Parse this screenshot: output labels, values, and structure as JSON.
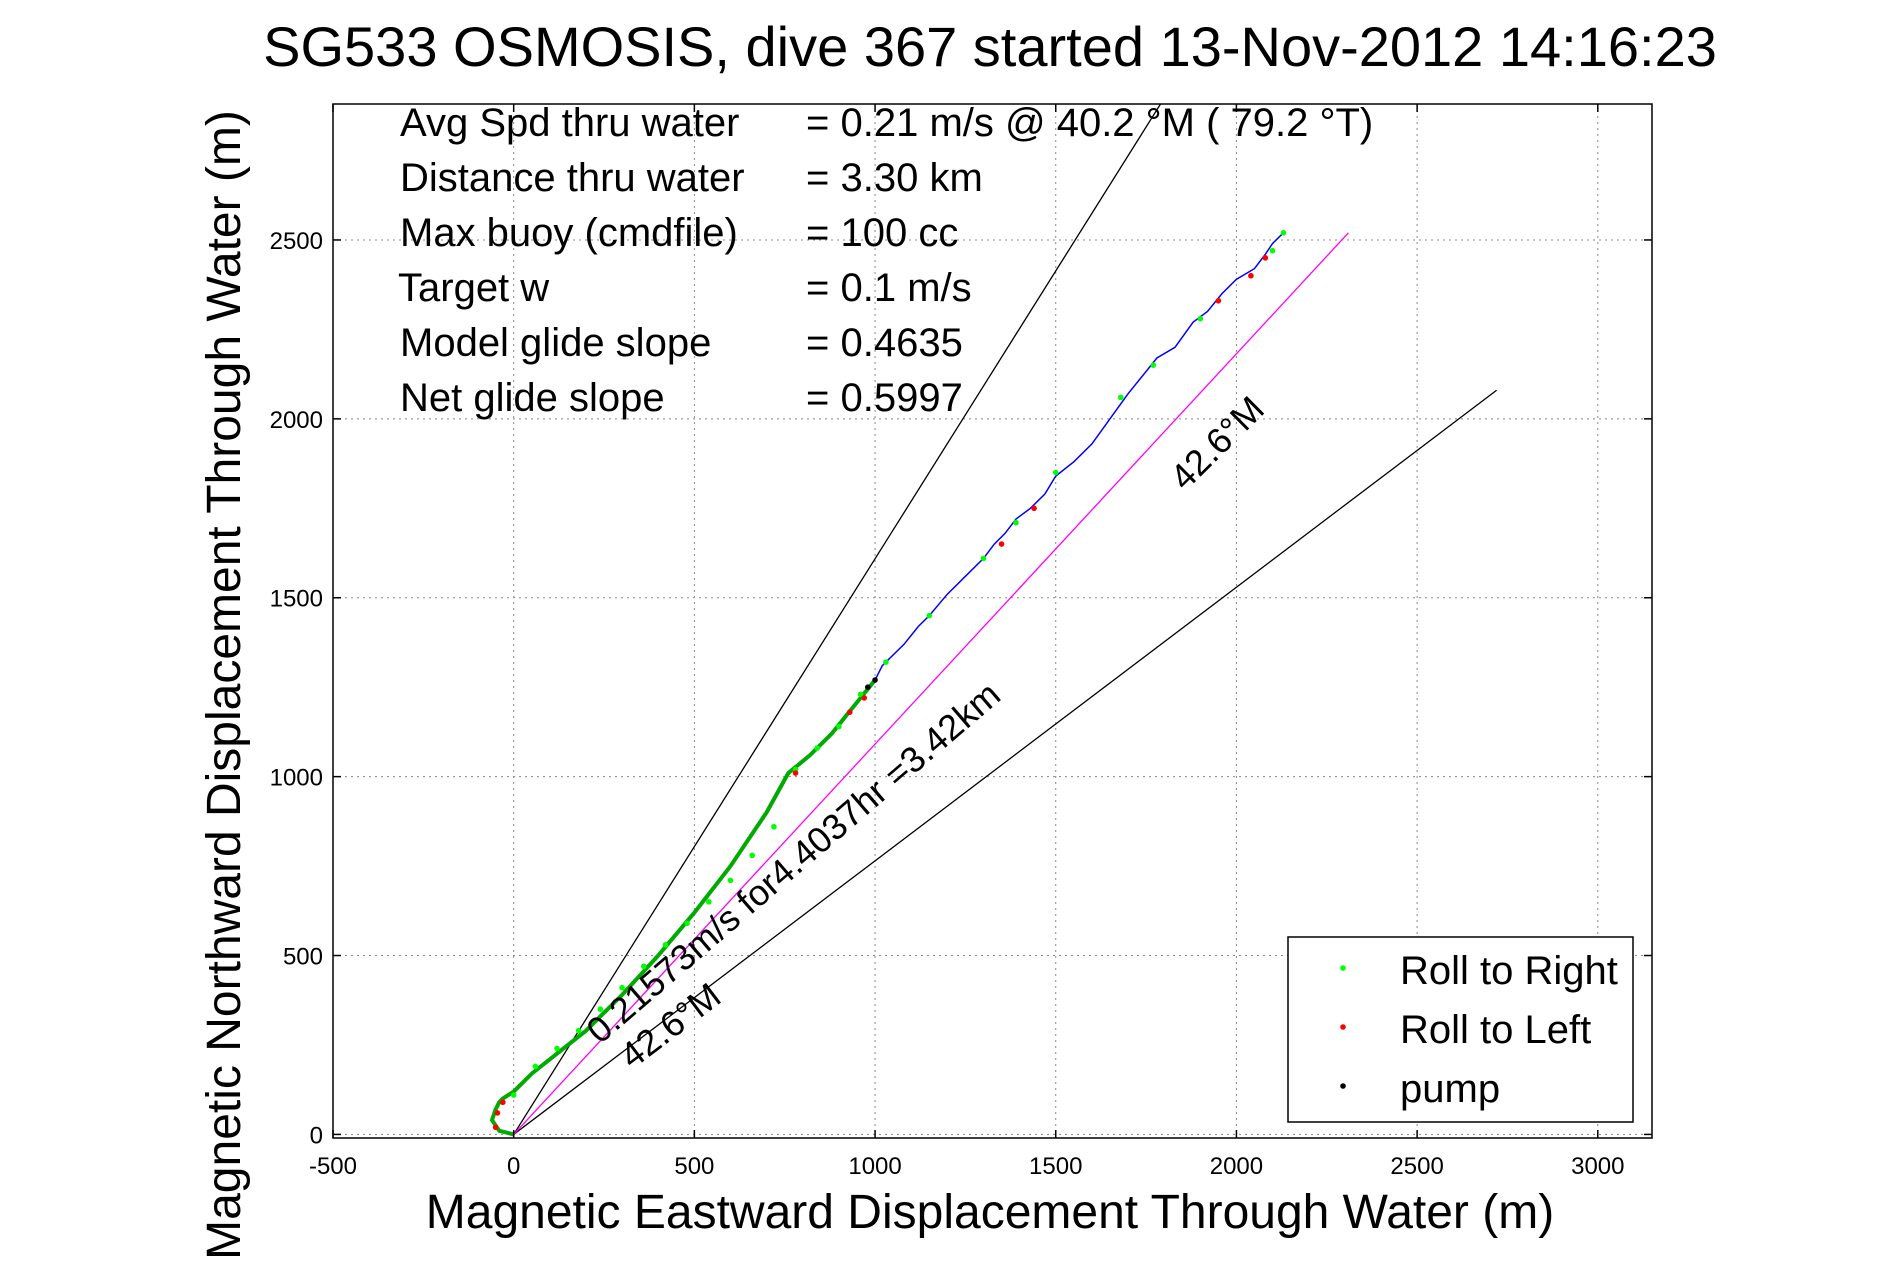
{
  "chart_data": {
    "type": "line",
    "title": "SG533 OSMOSIS, dive 367 started 13-Nov-2012 14:16:23",
    "xlabel": "Magnetic Eastward Displacement Through Water (m)",
    "ylabel": "Magnetic Northward Displacement Through Water (m)",
    "xlim": [
      -500,
      3150
    ],
    "ylim": [
      -10,
      2880
    ],
    "xticks": [
      -500,
      0,
      500,
      1000,
      1500,
      2000,
      2500,
      3000
    ],
    "yticks": [
      0,
      500,
      1000,
      1500,
      2000,
      2500
    ],
    "grid": true,
    "annotations": [
      {
        "label": "Avg Spd thru water",
        "value": "=  0.21 m/s @  40.2 °M ( 79.2 °T)"
      },
      {
        "label": "Distance thru water",
        "value": "=  3.30 km"
      },
      {
        "label": "Max buoy (cmdfile)",
        "value": "= 100 cc"
      },
      {
        "label": "Target w",
        "value": "= 0.1 m/s"
      },
      {
        "label": "Model glide slope",
        "value": "= 0.4635"
      },
      {
        "label": "Net glide slope",
        "value": "= 0.5997"
      }
    ],
    "line_annotations": {
      "course_text": "0.21573m/s for4.4037hr =3.42km",
      "center_heading": "42.6°M",
      "lower_heading": "42.6°M"
    },
    "reference_lines": [
      {
        "name": "upper-bound",
        "color": "#000000",
        "x": [
          0,
          1790
        ],
        "y": [
          0,
          2880
        ]
      },
      {
        "name": "lower-bound",
        "color": "#000000",
        "x": [
          0,
          2720
        ],
        "y": [
          0,
          2080
        ]
      },
      {
        "name": "heading-line",
        "color": "#ff00ff",
        "x": [
          0,
          2310
        ],
        "y": [
          0,
          2520
        ]
      }
    ],
    "track": {
      "color": "#0000ff",
      "x": [
        0,
        -40,
        -60,
        -50,
        -40,
        -30,
        0,
        50,
        100,
        150,
        200,
        250,
        300,
        400,
        500,
        600,
        700,
        760,
        820,
        880,
        920,
        960,
        1000,
        1020,
        1050,
        1080,
        1120,
        1150,
        1200,
        1250,
        1300,
        1330,
        1360,
        1390,
        1430,
        1470,
        1500,
        1550,
        1600,
        1650,
        1700,
        1740,
        1780,
        1830,
        1880,
        1920,
        1960,
        2000,
        2050,
        2080,
        2100,
        2130
      ],
      "y": [
        0,
        10,
        40,
        70,
        90,
        100,
        120,
        170,
        210,
        250,
        290,
        340,
        390,
        500,
        620,
        750,
        900,
        1010,
        1060,
        1120,
        1170,
        1220,
        1270,
        1310,
        1340,
        1370,
        1420,
        1450,
        1510,
        1560,
        1610,
        1650,
        1680,
        1720,
        1750,
        1790,
        1840,
        1880,
        1930,
        2000,
        2070,
        2120,
        2170,
        2200,
        2270,
        2300,
        2350,
        2390,
        2420,
        2460,
        2490,
        2520
      ]
    },
    "series": [
      {
        "name": "Roll to Right",
        "color": "#00ff00",
        "x": [
          0,
          60,
          120,
          180,
          240,
          300,
          360,
          420,
          480,
          540,
          600,
          660,
          720,
          780,
          840,
          900,
          960,
          1030,
          1150,
          1300,
          1390,
          1500,
          1680,
          1770,
          1900,
          2100,
          2130
        ],
        "y": [
          110,
          190,
          240,
          290,
          350,
          410,
          470,
          530,
          590,
          650,
          710,
          780,
          860,
          1020,
          1080,
          1140,
          1230,
          1320,
          1450,
          1610,
          1710,
          1850,
          2060,
          2150,
          2280,
          2470,
          2520
        ]
      },
      {
        "name": "Roll to Left",
        "color": "#ff0000",
        "x": [
          -50,
          -45,
          -30,
          780,
          930,
          970,
          1350,
          1440,
          1950,
          2040,
          2080
        ],
        "y": [
          20,
          60,
          90,
          1010,
          1180,
          1220,
          1650,
          1750,
          2330,
          2400,
          2450
        ]
      },
      {
        "name": "pump",
        "color": "#000000",
        "x": [
          1000,
          980
        ],
        "y": [
          1270,
          1250
        ]
      }
    ],
    "legend_placement": "bottom-right"
  }
}
